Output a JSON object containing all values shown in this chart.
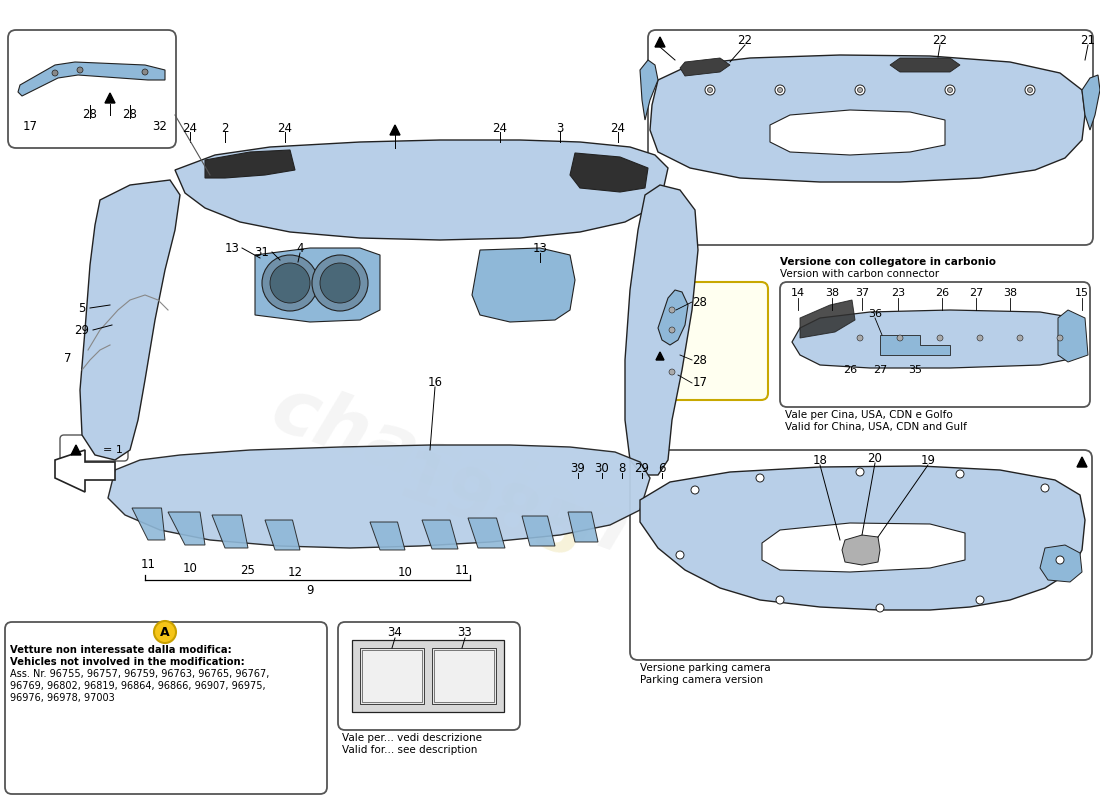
{
  "bg_color": "#ffffff",
  "part_color_light": "#b8cfe8",
  "part_color_mid": "#8fb8d8",
  "part_color_dark": "#6090b8",
  "part_color_carbon": "#303030",
  "line_color": "#222222",
  "label_a_fill": "#f5c518",
  "label_a_border": "#c8a000",
  "yellow_box_fill": "#fffff0",
  "yellow_box_border": "#c8a800",
  "text_carbon_it": "Versione con collegatore in carbonio",
  "text_carbon_en": "Version with carbon connector",
  "text_china_it": "Vale per Cina, USA, CDN e Golfo",
  "text_china_en": "Valid for China, USA, CDN and Gulf",
  "text_parking_it": "Versione parking camera",
  "text_parking_en": "Parking camera version",
  "text_license_it": "Vale per... vedi descrizione",
  "text_license_en": "Valid for... see description",
  "text_note_it": "Vetture non interessate dalla modifica:",
  "text_note_en": "Vehicles not involved in the modification:",
  "text_note_ass": "Ass. Nr. 96755, 96757, 96759, 96763, 96765, 96767,",
  "text_note_ass2": "96769, 96802, 96819, 96864, 96866, 96907, 96975,",
  "text_note_ass3": "96976, 96978, 97003"
}
